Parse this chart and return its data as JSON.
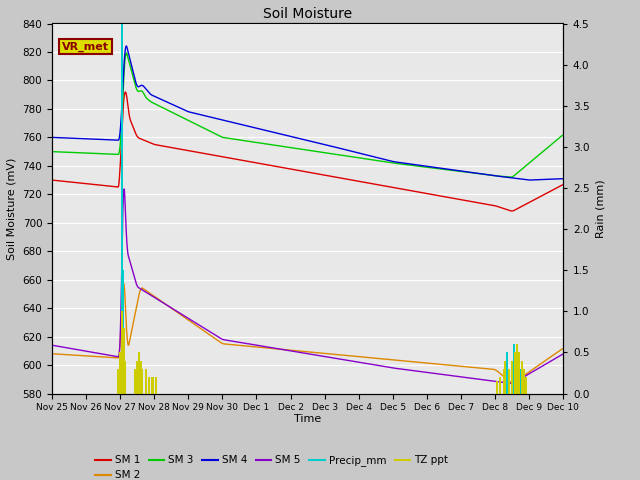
{
  "title": "Soil Moisture",
  "xlabel": "Time",
  "ylabel_left": "Soil Moisture (mV)",
  "ylabel_right": "Rain (mm)",
  "ylim_left": [
    580,
    840
  ],
  "ylim_right": [
    0.0,
    4.5
  ],
  "yticks_left": [
    580,
    600,
    620,
    640,
    660,
    680,
    700,
    720,
    740,
    760,
    780,
    800,
    820,
    840
  ],
  "yticks_right": [
    0.0,
    0.5,
    1.0,
    1.5,
    2.0,
    2.5,
    3.0,
    3.5,
    4.0,
    4.5
  ],
  "bg_color": "#c8c8c8",
  "plot_bg_color": "#e8e8e8",
  "grid_color": "white",
  "annotation_text": "VR_met",
  "annotation_bg": "#dddd00",
  "annotation_fg": "#8b0000",
  "colors": {
    "SM1": "#dd0000",
    "SM2": "#dd8800",
    "SM3": "#00cc00",
    "SM4": "#0000dd",
    "SM5": "#8800cc",
    "Precip": "#00cccc",
    "TZ": "#cccc00"
  },
  "day_labels": [
    "Nov 25",
    "Nov 26",
    "Nov 27",
    "Nov 28",
    "Nov 29",
    "Nov 30",
    "Dec 1",
    "Dec 2",
    "Dec 3",
    "Dec 4",
    "Dec 5",
    "Dec 6",
    "Dec 7",
    "Dec 8",
    "Dec 9",
    "Dec 10"
  ],
  "legend_labels": [
    "SM 1",
    "SM 2",
    "SM 3",
    "SM 4",
    "SM 5",
    "Precip_mm",
    "TZ ppt"
  ]
}
